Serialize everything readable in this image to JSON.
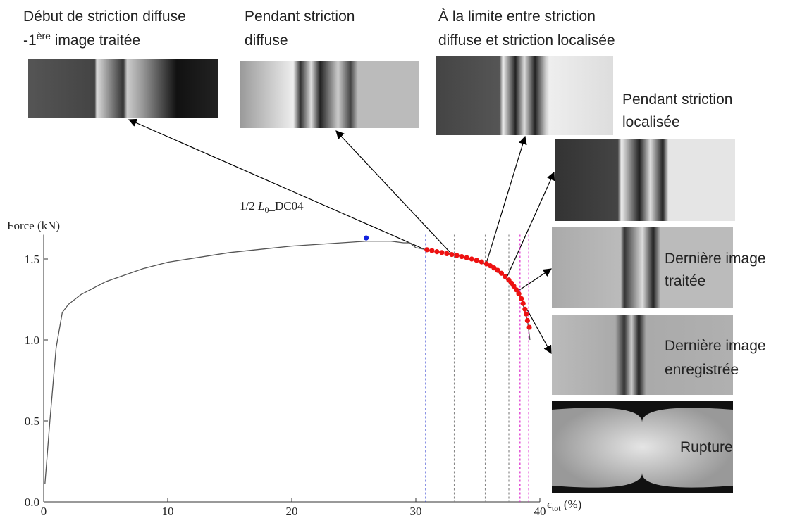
{
  "chart_data": {
    "type": "line",
    "y_label": "Force (kN)",
    "x_label": {
      "symbol": "ϵ",
      "subscript": "tot",
      "unit": " (%)"
    },
    "specimen_label": {
      "prefix": "1/2 ",
      "symbol": "L",
      "subscript": "0",
      "suffix": "_DC04"
    },
    "xlim": [
      0,
      40
    ],
    "xticks": [
      0,
      10,
      20,
      30,
      40
    ],
    "ylim": [
      0,
      1.65
    ],
    "yticks": [
      {
        "value": 0,
        "label": "0.0"
      },
      0.5,
      {
        "value": 1,
        "label": "1.0"
      },
      1.5
    ],
    "series": [
      {
        "color": "#555555",
        "marker": "none",
        "x": [
          0.1,
          0.5,
          1,
          1.5,
          2,
          3,
          5,
          8,
          10,
          15,
          20,
          25,
          26,
          28,
          29,
          29.5,
          30,
          30.9,
          33,
          35,
          36,
          37,
          38,
          38.5,
          39,
          39.2
        ],
        "values": [
          0.11,
          0.5,
          0.95,
          1.17,
          1.22,
          1.28,
          1.36,
          1.44,
          1.48,
          1.54,
          1.58,
          1.605,
          1.61,
          1.61,
          1.6,
          1.6,
          1.57,
          1.557,
          1.528,
          1.492,
          1.452,
          1.4,
          1.31,
          1.255,
          1.12,
          1.0
        ]
      },
      {
        "color": "#ee1111",
        "marker": "circle",
        "x": [
          30.9,
          31.3,
          31.7,
          32.1,
          32.5,
          32.9,
          33.3,
          33.7,
          34.1,
          34.5,
          34.9,
          35.3,
          35.7,
          36,
          36.3,
          36.6,
          36.9,
          37.2,
          37.5,
          37.7,
          37.9,
          38.1,
          38.3,
          38.5,
          38.65,
          38.8,
          38.9,
          39,
          39.15
        ],
        "values": [
          1.557,
          1.552,
          1.545,
          1.54,
          1.533,
          1.528,
          1.522,
          1.515,
          1.508,
          1.5,
          1.492,
          1.482,
          1.47,
          1.458,
          1.445,
          1.43,
          1.412,
          1.392,
          1.37,
          1.352,
          1.332,
          1.31,
          1.285,
          1.255,
          1.225,
          1.19,
          1.16,
          1.12,
          1.078
        ]
      },
      {
        "color": "#1122dd",
        "marker": "circle",
        "x": [
          26
        ],
        "values": [
          1.63
        ]
      }
    ],
    "vlines": [
      {
        "x": 30.8,
        "color": "#2233cc"
      },
      {
        "x": 33.1,
        "color": "#888888"
      },
      {
        "x": 35.6,
        "color": "#888888"
      },
      {
        "x": 37.5,
        "color": "#888888"
      },
      {
        "x": 38.4,
        "color": "#dd22cc"
      },
      {
        "x": 39.1,
        "color": "#dd22cc"
      }
    ]
  },
  "panels": [
    {
      "lines": [
        "Début de striction diffuse",
        {
          "before": "-1",
          "sup": "ère",
          "after": " image traitée"
        }
      ]
    },
    {
      "lines": [
        "Pendant striction",
        "diffuse"
      ]
    },
    {
      "lines": [
        "À la limite entre striction",
        "diffuse et striction localisée"
      ]
    },
    {
      "lines": [
        "Pendant striction",
        "localisée"
      ]
    },
    {
      "lines": [
        "Dernière image",
        "traitée"
      ]
    },
    {
      "lines": [
        "Dernière image",
        "enregistrée"
      ]
    },
    {
      "lines": [
        "Rupture"
      ]
    }
  ]
}
